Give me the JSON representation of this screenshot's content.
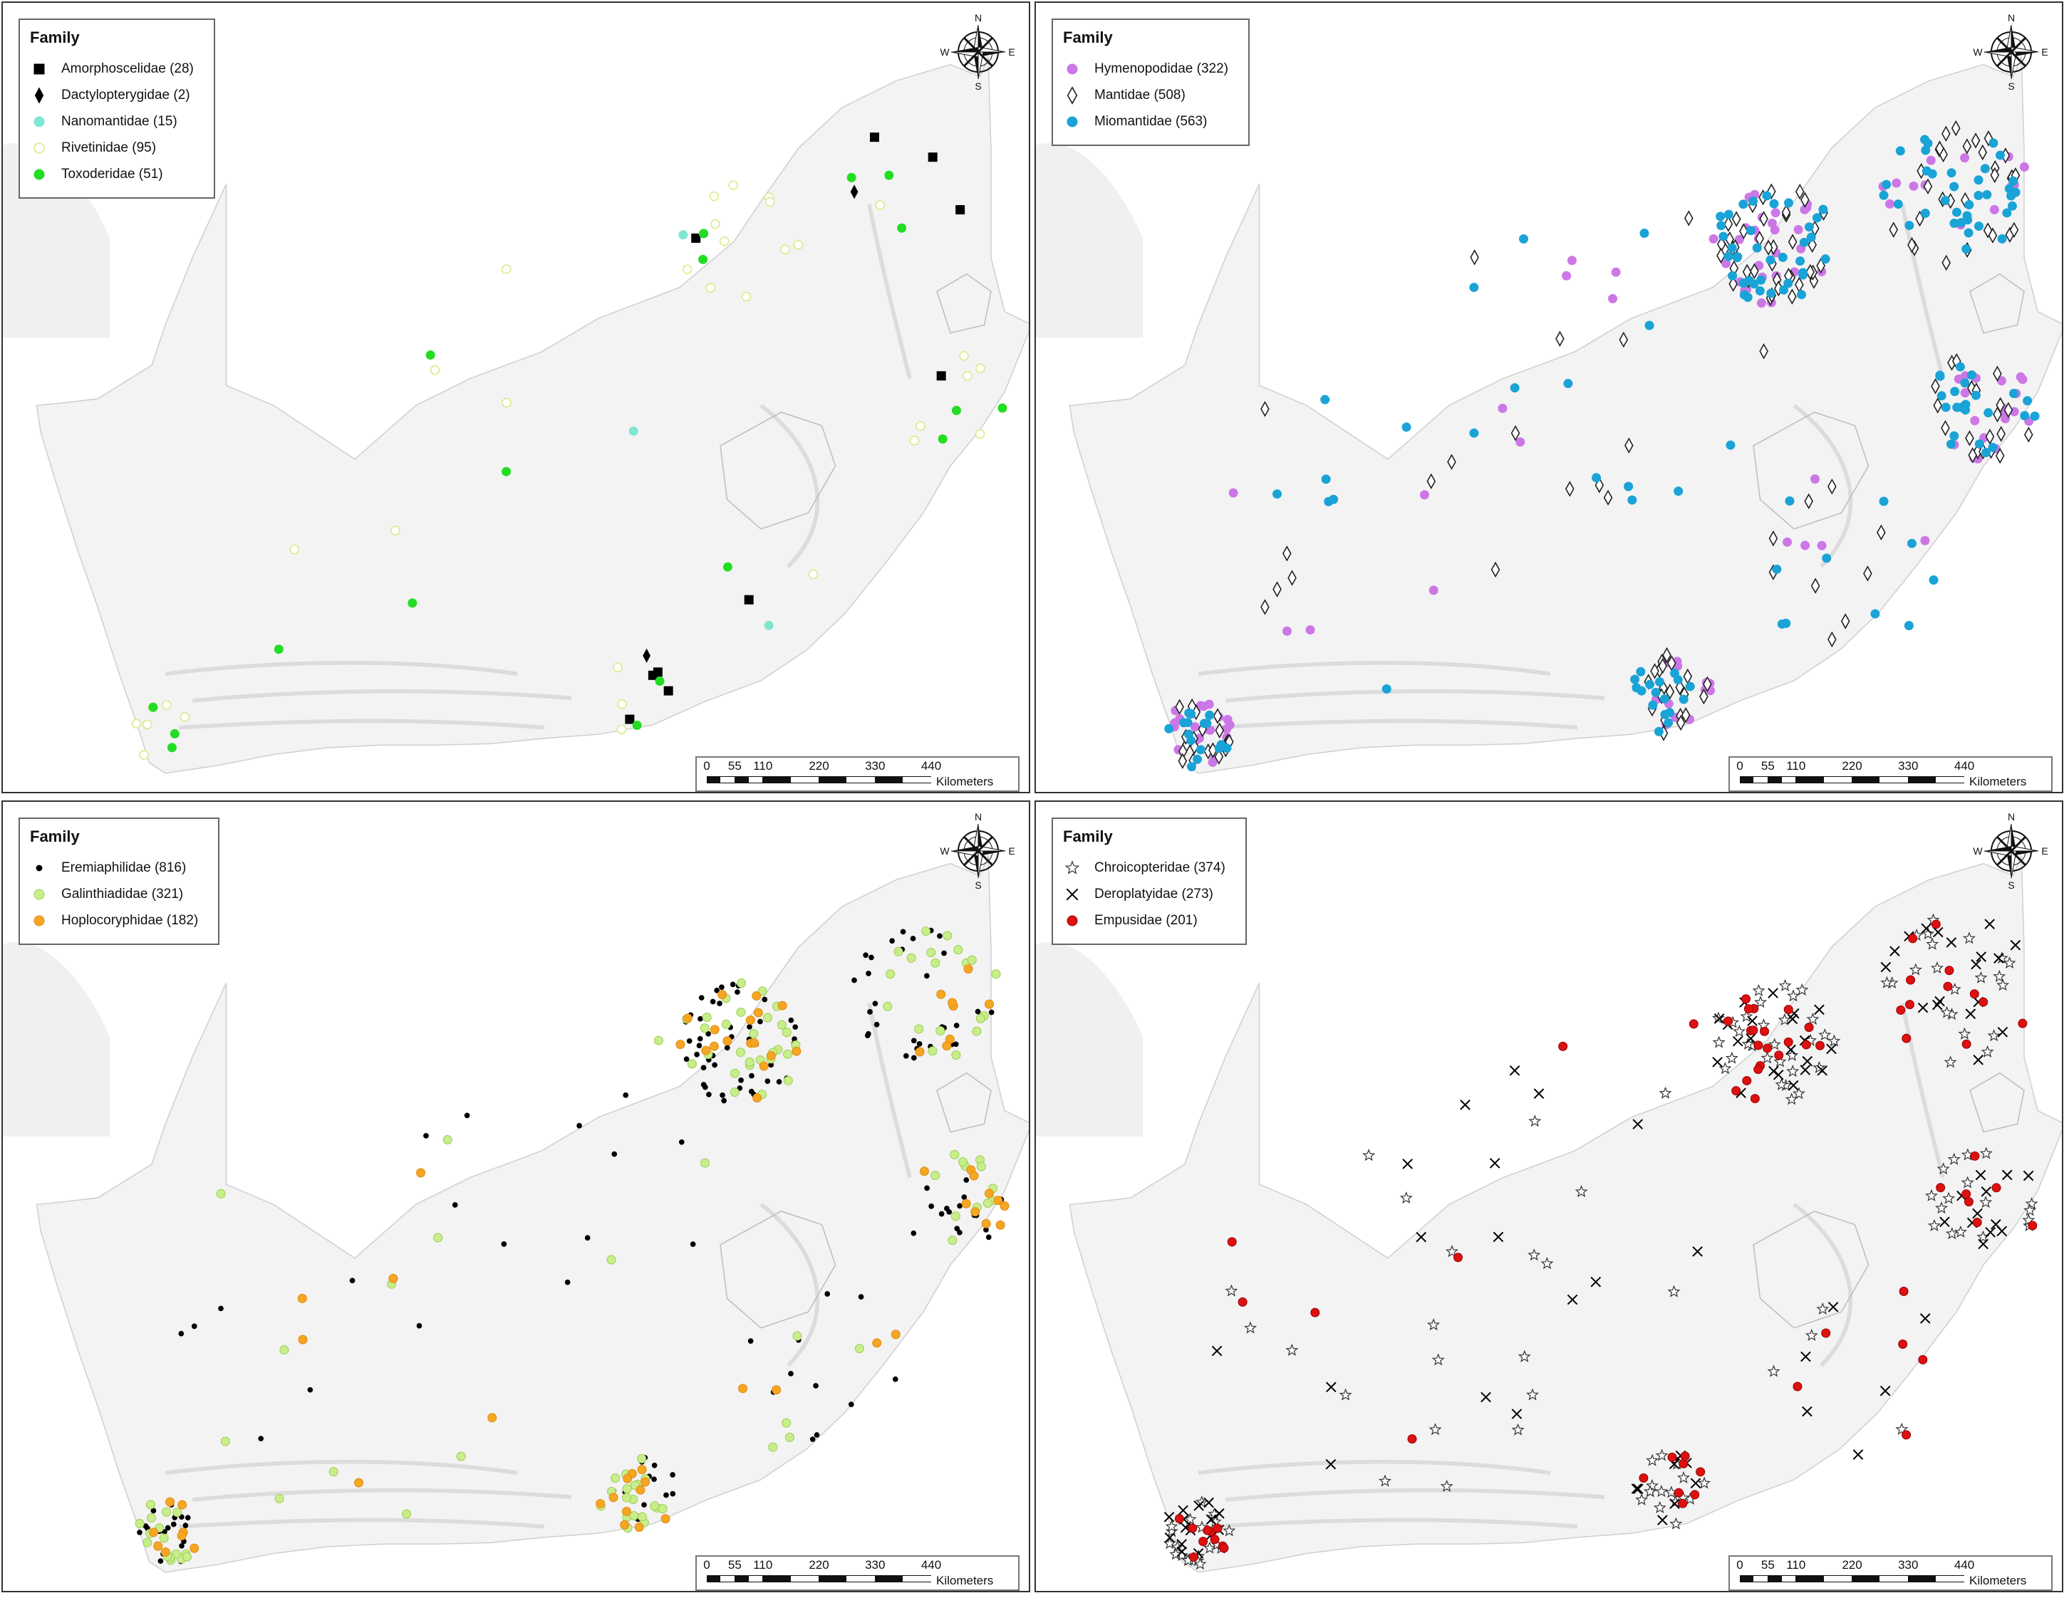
{
  "legend_title": "Family",
  "scale": {
    "ticks": [
      "0",
      "55",
      "110",
      "220",
      "330",
      "440"
    ],
    "values": [
      0,
      55,
      110,
      220,
      330,
      440
    ],
    "units": "Kilometers"
  },
  "compass": {
    "n": "N",
    "s": "S",
    "e": "E",
    "w": "W"
  },
  "colors": {
    "land": "#f3f3f3",
    "land_stroke": "#cfcfcf",
    "border": "#bdbdbd"
  },
  "panels": [
    {
      "legend": [
        {
          "label": "Amorphoscelidae (28)",
          "symbol": "square",
          "fill": "#000000",
          "stroke": "#000000"
        },
        {
          "label": "Dactylopterygidae (2)",
          "symbol": "diamond",
          "fill": "#000000",
          "stroke": "#000000"
        },
        {
          "label": "Nanomantidae (15)",
          "symbol": "circle",
          "fill": "#7fe6d2",
          "stroke": "#7fe6d2"
        },
        {
          "label": "Rivetinidae (95)",
          "symbol": "ring",
          "fill": "#ffffff",
          "stroke": "#e0e88a"
        },
        {
          "label": "Toxoderidae (51)",
          "symbol": "circle",
          "fill": "#22dd22",
          "stroke": "#22dd22"
        }
      ]
    },
    {
      "legend": [
        {
          "label": "Hymenopodidae (322)",
          "symbol": "circle",
          "fill": "#cc77e6",
          "stroke": "#cc77e6"
        },
        {
          "label": "Mantidae (508)",
          "symbol": "diamond-open",
          "fill": "#ffffff",
          "stroke": "#222222"
        },
        {
          "label": "Miomantidae (563)",
          "symbol": "circle",
          "fill": "#1aa3d6",
          "stroke": "#1aa3d6"
        }
      ]
    },
    {
      "legend": [
        {
          "label": "Eremiaphilidae (816)",
          "symbol": "dot",
          "fill": "#000000",
          "stroke": "#000000"
        },
        {
          "label": "Galinthiadidae (321)",
          "symbol": "circle",
          "fill": "#c8ee8a",
          "stroke": "#9ccc55"
        },
        {
          "label": "Hoplocoryphidae (182)",
          "symbol": "circle",
          "fill": "#f5a623",
          "stroke": "#e08a10"
        }
      ]
    },
    {
      "legend": [
        {
          "label": "Chroicopteridae (374)",
          "symbol": "star",
          "fill": "#ffffff",
          "stroke": "#333333"
        },
        {
          "label": "Deroplatyidae (273)",
          "symbol": "cross",
          "fill": "#000000",
          "stroke": "#000000"
        },
        {
          "label": "Empusidae (201)",
          "symbol": "circle",
          "fill": "#dd1111",
          "stroke": "#990000"
        }
      ]
    }
  ]
}
